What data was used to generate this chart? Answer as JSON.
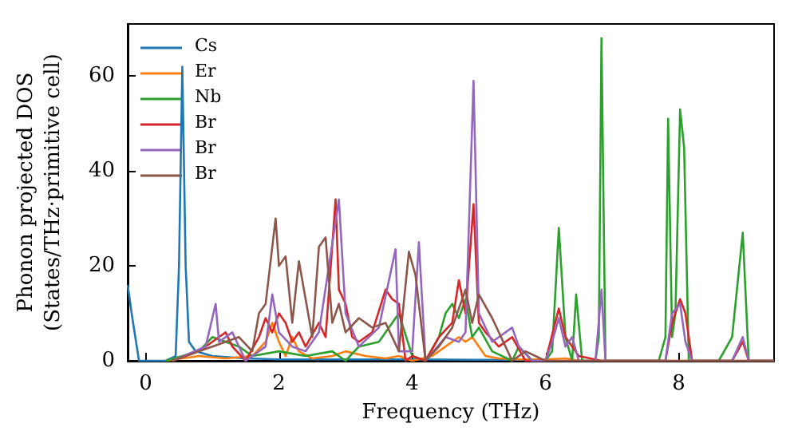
{
  "chart_data": {
    "type": "line",
    "xlabel": "Frequency (THz)",
    "ylabel": "Phonon projected DOS\n(States/THz·primitive cell)",
    "xlim": [
      -0.27,
      9.43
    ],
    "xticks": [
      0,
      2,
      4,
      6,
      8
    ],
    "ylim": [
      0,
      71
    ],
    "yticks": [
      0,
      20,
      40,
      60
    ],
    "grid": false,
    "legend": "top left",
    "marker": "none",
    "line_style": "solid",
    "series": [
      {
        "name": "Cs",
        "color": "#1f77b4",
        "x": [
          -0.27,
          -0.2,
          -0.1,
          0.3,
          0.45,
          0.5,
          0.55,
          0.6,
          0.65,
          0.75,
          1.0,
          1.5,
          2.0,
          3.0,
          4.0,
          5.0,
          6.0
        ],
        "values": [
          16,
          9,
          0,
          0,
          1,
          20,
          62,
          20,
          4,
          2,
          1,
          0.5,
          0.3,
          0.3,
          0.3,
          0.2,
          0.2
        ]
      },
      {
        "name": "Er",
        "color": "#ff7f0e",
        "x": [
          0.3,
          0.8,
          1.2,
          1.6,
          1.8,
          1.9,
          2.0,
          2.1,
          2.2,
          2.3,
          2.5,
          2.8,
          3.0,
          3.3,
          3.6,
          3.8,
          4.0,
          4.3,
          4.5,
          4.7,
          4.8,
          4.9,
          5.0,
          5.1,
          5.3,
          5.6,
          6.0,
          6.3,
          6.5,
          7.0,
          9.43
        ],
        "values": [
          0,
          1,
          0.5,
          1,
          4,
          8,
          4,
          1,
          5,
          2,
          0.5,
          1,
          2,
          1,
          0.5,
          1,
          0,
          1,
          3,
          5,
          4,
          5,
          3,
          1,
          0.5,
          0.3,
          0.3,
          0.5,
          0,
          0,
          0
        ]
      },
      {
        "name": "Nb",
        "color": "#2ca02c",
        "x": [
          0.3,
          0.8,
          1.0,
          1.2,
          1.4,
          1.6,
          2.0,
          2.4,
          2.8,
          3.0,
          3.2,
          3.5,
          3.7,
          3.8,
          4.0,
          4.2,
          4.4,
          4.5,
          4.6,
          4.7,
          4.8,
          4.9,
          5.0,
          5.2,
          5.5,
          5.6,
          5.8,
          6.0,
          6.1,
          6.2,
          6.3,
          6.4,
          6.46,
          6.55,
          6.75,
          6.8,
          6.84,
          6.9,
          7.0,
          7.7,
          7.8,
          7.84,
          7.9,
          7.95,
          8.02,
          8.08,
          8.15,
          8.6,
          8.8,
          8.96,
          9.05,
          9.43
        ],
        "values": [
          0,
          2,
          5,
          4,
          3,
          1,
          2,
          1,
          2,
          0,
          3,
          4,
          8,
          10,
          1,
          0,
          5,
          10,
          12,
          9,
          13,
          5,
          7,
          2,
          0,
          3,
          0,
          0,
          2,
          28,
          5,
          0,
          14,
          0,
          0,
          5,
          68,
          0,
          0,
          0,
          5,
          51,
          5,
          10,
          53,
          45,
          0,
          0,
          5,
          27,
          0,
          0
        ]
      },
      {
        "name": "Br",
        "color": "#d62728",
        "x": [
          0.4,
          0.8,
          1.0,
          1.1,
          1.2,
          1.3,
          1.5,
          1.7,
          1.8,
          1.9,
          2.0,
          2.1,
          2.2,
          2.3,
          2.4,
          2.6,
          2.7,
          2.85,
          2.9,
          3.0,
          3.1,
          3.2,
          3.4,
          3.6,
          3.7,
          3.8,
          3.9,
          4.0,
          4.2,
          4.4,
          4.6,
          4.7,
          4.8,
          4.92,
          5.0,
          5.1,
          5.3,
          5.5,
          5.7,
          6.0,
          6.2,
          6.3,
          6.5,
          6.84,
          7.0,
          7.8,
          7.9,
          8.02,
          8.1,
          8.2,
          8.8,
          8.96,
          9.05,
          9.43
        ],
        "values": [
          0,
          2,
          4,
          5,
          6,
          3,
          0,
          5,
          9,
          6,
          10,
          8,
          4,
          6,
          3,
          8,
          5,
          34,
          15,
          12,
          5,
          4,
          6,
          15,
          13,
          12,
          0,
          1,
          0,
          5,
          8,
          17,
          10,
          33,
          8,
          6,
          3,
          5,
          0,
          0,
          11,
          5,
          1,
          0,
          0,
          0,
          8,
          13,
          10,
          0,
          0,
          4,
          0,
          0
        ]
      },
      {
        "name": "Br",
        "color": "#9467bd",
        "x": [
          0.4,
          0.9,
          1.05,
          1.1,
          1.3,
          1.5,
          1.8,
          1.9,
          2.0,
          2.2,
          2.4,
          2.6,
          2.9,
          3.0,
          3.2,
          3.5,
          3.75,
          3.8,
          4.0,
          4.1,
          4.2,
          4.5,
          4.7,
          4.8,
          4.92,
          5.0,
          5.2,
          5.5,
          5.6,
          5.8,
          6.0,
          6.1,
          6.2,
          6.3,
          6.4,
          6.5,
          6.6,
          6.75,
          6.84,
          6.9,
          7.8,
          7.9,
          8.02,
          8.1,
          8.2,
          8.8,
          8.96,
          9.05,
          9.43
        ],
        "values": [
          0,
          3,
          12,
          4,
          6,
          0,
          3,
          14,
          6,
          3,
          2,
          6,
          34,
          10,
          3,
          7,
          23.5,
          2,
          2,
          25,
          0,
          5,
          4,
          6,
          59,
          10,
          4,
          7,
          3,
          0,
          0,
          4,
          9,
          3,
          5,
          0,
          0,
          0,
          15,
          0,
          0,
          10,
          12,
          4,
          0,
          0,
          5,
          0,
          0
        ]
      },
      {
        "name": "Br",
        "color": "#8c564b",
        "x": [
          0.4,
          0.8,
          1.0,
          1.2,
          1.4,
          1.6,
          1.7,
          1.8,
          1.95,
          2.0,
          2.1,
          2.2,
          2.3,
          2.5,
          2.6,
          2.7,
          2.8,
          2.9,
          3.0,
          3.2,
          3.4,
          3.6,
          3.8,
          3.95,
          4.05,
          4.2,
          4.4,
          4.6,
          4.8,
          4.9,
          5.0,
          5.2,
          5.5,
          5.7,
          6.0,
          6.2,
          6.5,
          7.0,
          9.43
        ],
        "values": [
          0,
          2,
          3,
          4,
          5,
          2,
          10,
          12,
          30,
          20,
          22,
          8,
          21,
          5,
          24,
          26,
          8,
          12,
          6,
          9,
          7,
          8,
          2,
          23,
          18,
          0,
          3,
          7,
          15,
          8,
          14,
          9,
          0,
          2,
          0,
          0,
          0,
          0,
          0
        ]
      }
    ]
  }
}
